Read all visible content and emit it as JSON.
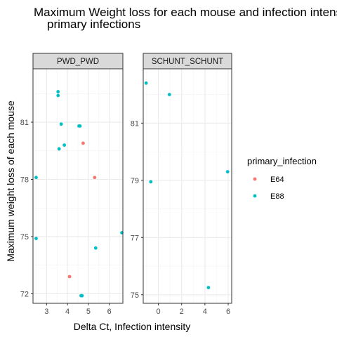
{
  "chart_data": {
    "type": "scatter",
    "title_lines": [
      "Maximum Weight loss for each mouse and infection intensity",
      "primary infections"
    ],
    "xlabel": "Delta Ct, Infection intensity",
    "ylabel": "Maximum weight loss of each mouse",
    "legend": {
      "title": "primary_infection",
      "position": "right",
      "entries": [
        {
          "name": "E64",
          "color": "#F8766D"
        },
        {
          "name": "E88",
          "color": "#00BFC4"
        }
      ]
    },
    "grid": true,
    "panels": [
      {
        "strip": "PWD_PWD",
        "xlim": [
          2.35,
          6.65
        ],
        "ylim": [
          71.5,
          83.8
        ],
        "xticks": [
          3,
          4,
          5,
          6
        ],
        "yticks": [
          72,
          75,
          78,
          81
        ],
        "series": [
          {
            "name": "E64",
            "points": [
              {
                "x": 4.75,
                "y": 79.9
              },
              {
                "x": 5.3,
                "y": 78.1
              },
              {
                "x": 4.1,
                "y": 72.9
              }
            ]
          },
          {
            "name": "E88",
            "points": [
              {
                "x": 3.55,
                "y": 82.6
              },
              {
                "x": 3.55,
                "y": 82.4
              },
              {
                "x": 3.7,
                "y": 80.9
              },
              {
                "x": 4.55,
                "y": 80.8
              },
              {
                "x": 4.6,
                "y": 80.8
              },
              {
                "x": 3.85,
                "y": 79.8
              },
              {
                "x": 3.6,
                "y": 79.6
              },
              {
                "x": 2.5,
                "y": 78.1
              },
              {
                "x": 6.6,
                "y": 75.2
              },
              {
                "x": 2.5,
                "y": 74.9
              },
              {
                "x": 5.35,
                "y": 74.4
              },
              {
                "x": 4.65,
                "y": 71.9
              },
              {
                "x": 4.7,
                "y": 71.9
              }
            ]
          }
        ]
      },
      {
        "strip": "SCHUNT_SCHUNT",
        "xlim": [
          -1.3,
          6.3
        ],
        "ylim": [
          74.7,
          82.9
        ],
        "xticks": [
          0,
          2,
          4,
          6
        ],
        "yticks": [
          75,
          77,
          79,
          81
        ],
        "series": [
          {
            "name": "E64",
            "points": []
          },
          {
            "name": "E88",
            "points": [
              {
                "x": -1.05,
                "y": 82.4
              },
              {
                "x": 0.95,
                "y": 82.0
              },
              {
                "x": -0.65,
                "y": 78.95
              },
              {
                "x": 5.95,
                "y": 79.3
              },
              {
                "x": 4.3,
                "y": 75.25
              }
            ]
          }
        ]
      }
    ]
  }
}
